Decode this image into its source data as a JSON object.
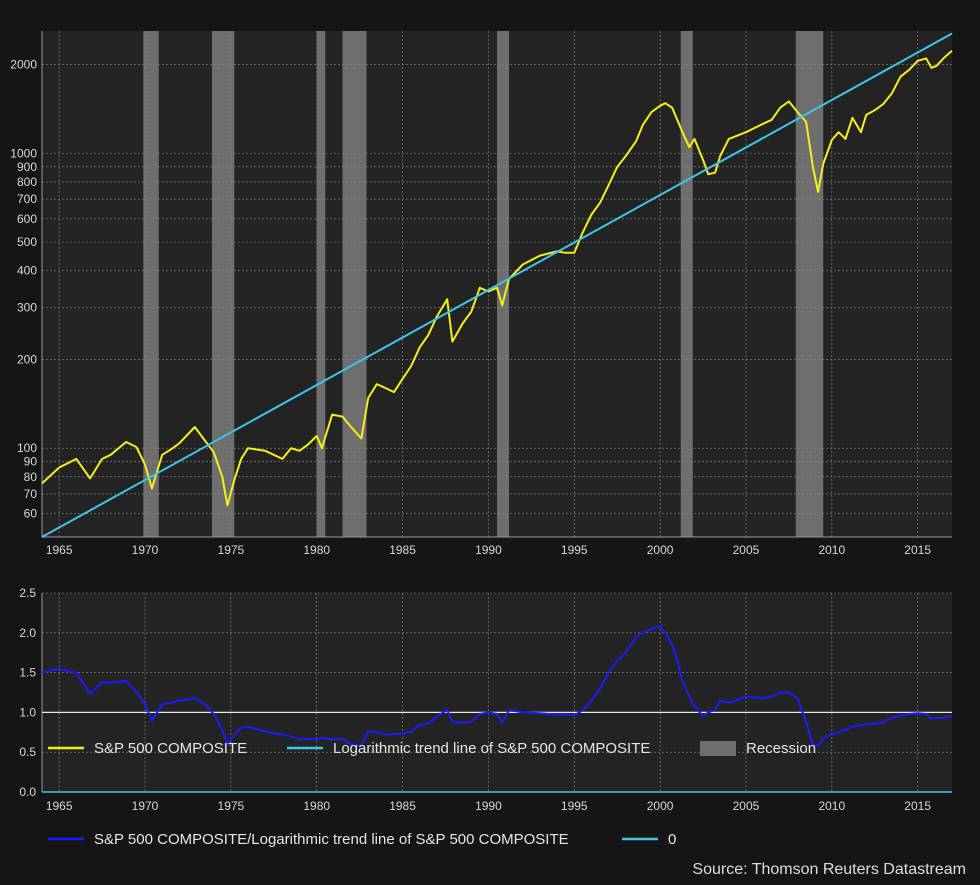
{
  "source": "Source: Thomson Reuters Datastream",
  "colors": {
    "background": "#151515",
    "plot_bg": "#232323",
    "sp500": "#f5ee1b",
    "trend": "#3ec5ee",
    "ratio": "#1a1aff",
    "zero": "#3ec5ee",
    "recession": "#6e6e6e"
  },
  "legend_top": [
    {
      "label": "S&P 500 COMPOSITE",
      "type": "line",
      "color": "#f5ee1b"
    },
    {
      "label": "Logarithmic trend line of S&P 500 COMPOSITE",
      "type": "line",
      "color": "#3ec5ee"
    },
    {
      "label": "Recession",
      "type": "box",
      "color": "#6e6e6e"
    }
  ],
  "legend_bottom": [
    {
      "label": "S&P 500 COMPOSITE/Logarithmic trend line of S&P 500 COMPOSITE",
      "type": "line",
      "color": "#1a1aff"
    },
    {
      "label": "0",
      "type": "line",
      "color": "#3ec5ee"
    }
  ],
  "chart_data": [
    {
      "type": "line",
      "y_scale": "log",
      "xlim": [
        1964.0,
        2017.0
      ],
      "ylim": [
        50,
        2600
      ],
      "x_ticks": [
        "1965",
        "1970",
        "1975",
        "1980",
        "1985",
        "1990",
        "1995",
        "2000",
        "2005",
        "2010",
        "2015"
      ],
      "y_ticks": [
        "60",
        "70",
        "80",
        "90",
        "100",
        "200",
        "300",
        "400",
        "500",
        "600",
        "700",
        "800",
        "900",
        "1000",
        "2000"
      ],
      "recessions": [
        [
          1969.9,
          1970.8
        ],
        [
          1973.9,
          1975.2
        ],
        [
          1980.0,
          1980.5
        ],
        [
          1981.5,
          1982.9
        ],
        [
          1990.5,
          1991.2
        ],
        [
          2001.2,
          2001.9
        ],
        [
          2007.9,
          2009.5
        ]
      ],
      "series": [
        {
          "name": "S&P 500 COMPOSITE",
          "x": [
            1964.0,
            1965.0,
            1965.5,
            1966.0,
            1966.8,
            1967.5,
            1968.0,
            1968.9,
            1969.5,
            1970.0,
            1970.4,
            1971.0,
            1971.5,
            1972.0,
            1972.9,
            1973.5,
            1974.0,
            1974.5,
            1974.8,
            1975.2,
            1975.6,
            1976.0,
            1977.0,
            1978.0,
            1978.5,
            1979.0,
            1979.5,
            1980.0,
            1980.3,
            1980.9,
            1981.5,
            1982.0,
            1982.6,
            1983.0,
            1983.5,
            1984.0,
            1984.5,
            1985.0,
            1985.5,
            1986.0,
            1986.5,
            1987.0,
            1987.6,
            1987.9,
            1988.5,
            1989.0,
            1989.5,
            1990.0,
            1990.5,
            1990.8,
            1991.2,
            1992.0,
            1993.0,
            1994.0,
            1994.5,
            1995.0,
            1995.5,
            1996.0,
            1996.5,
            1997.0,
            1997.5,
            1998.0,
            1998.6,
            1999.0,
            1999.5,
            2000.0,
            2000.3,
            2000.7,
            2001.0,
            2001.3,
            2001.7,
            2002.0,
            2002.5,
            2002.8,
            2003.2,
            2003.5,
            2004.0,
            2005.0,
            2006.0,
            2006.5,
            2007.0,
            2007.5,
            2008.0,
            2008.5,
            2008.9,
            2009.2,
            2009.5,
            2010.0,
            2010.4,
            2010.8,
            2011.2,
            2011.7,
            2012.0,
            2012.5,
            2013.0,
            2013.5,
            2014.0,
            2014.5,
            2015.0,
            2015.5,
            2015.8,
            2016.1,
            2016.5,
            2017.0
          ],
          "values": [
            76,
            86,
            89,
            92,
            79,
            92,
            95,
            105,
            101,
            88,
            73,
            95,
            99,
            104,
            118,
            106,
            97,
            80,
            64,
            78,
            92,
            100,
            98,
            92,
            100,
            98,
            103,
            110,
            100,
            130,
            128,
            118,
            108,
            148,
            165,
            160,
            155,
            172,
            190,
            220,
            242,
            280,
            320,
            230,
            265,
            290,
            350,
            340,
            350,
            305,
            375,
            420,
            450,
            465,
            460,
            460,
            540,
            620,
            680,
            780,
            900,
            980,
            1100,
            1250,
            1380,
            1450,
            1480,
            1430,
            1300,
            1180,
            1050,
            1120,
            950,
            850,
            860,
            980,
            1120,
            1180,
            1260,
            1300,
            1430,
            1500,
            1380,
            1280,
            900,
            740,
            920,
            1110,
            1180,
            1120,
            1320,
            1180,
            1350,
            1400,
            1470,
            1600,
            1820,
            1920,
            2060,
            2100,
            1950,
            1980,
            2100,
            2230
          ]
        },
        {
          "name": "Logarithmic trend line of S&P 500 COMPOSITE",
          "x": [
            1964.0,
            2017.0
          ],
          "values": [
            50,
            2550
          ]
        }
      ]
    },
    {
      "type": "line",
      "xlim": [
        1964.0,
        2017.0
      ],
      "ylim": [
        0,
        2.5
      ],
      "x_ticks": [
        "1965",
        "1970",
        "1975",
        "1980",
        "1985",
        "1990",
        "1995",
        "2000",
        "2005",
        "2010",
        "2015"
      ],
      "y_ticks": [
        "0.0",
        "0.5",
        "1.0",
        "1.5",
        "2.0",
        "2.5"
      ],
      "series": [
        {
          "name": "S&P 500 COMPOSITE/Logarithmic trend line of S&P 500 COMPOSITE",
          "x": [
            1964.0,
            1965.0,
            1965.5,
            1966.0,
            1966.8,
            1967.5,
            1968.0,
            1968.9,
            1969.5,
            1970.0,
            1970.4,
            1971.0,
            1971.5,
            1972.0,
            1972.9,
            1973.5,
            1974.0,
            1974.5,
            1974.8,
            1975.2,
            1975.6,
            1976.0,
            1977.0,
            1978.0,
            1978.5,
            1979.0,
            1979.5,
            1980.0,
            1980.3,
            1980.9,
            1981.5,
            1982.0,
            1982.6,
            1983.0,
            1983.5,
            1984.0,
            1984.5,
            1985.0,
            1985.5,
            1986.0,
            1986.5,
            1987.0,
            1987.6,
            1987.9,
            1988.5,
            1989.0,
            1989.5,
            1990.0,
            1990.5,
            1990.8,
            1991.2,
            1992.0,
            1993.0,
            1994.0,
            1994.5,
            1995.0,
            1995.5,
            1996.0,
            1996.5,
            1997.0,
            1997.5,
            1998.0,
            1998.6,
            1999.0,
            1999.5,
            2000.0,
            2000.3,
            2000.7,
            2001.0,
            2001.3,
            2001.7,
            2002.0,
            2002.5,
            2002.8,
            2003.2,
            2003.5,
            2004.0,
            2005.0,
            2006.0,
            2006.5,
            2007.0,
            2007.5,
            2008.0,
            2008.5,
            2008.9,
            2009.2,
            2009.5,
            2010.0,
            2010.4,
            2010.8,
            2011.2,
            2011.7,
            2012.0,
            2012.5,
            2013.0,
            2013.5,
            2014.0,
            2014.5,
            2015.0,
            2015.5,
            2015.8,
            2016.1,
            2016.5,
            2017.0
          ],
          "values": [
            1.5,
            1.55,
            1.52,
            1.5,
            1.23,
            1.38,
            1.37,
            1.4,
            1.26,
            1.1,
            0.9,
            1.1,
            1.12,
            1.15,
            1.18,
            1.1,
            0.98,
            0.78,
            0.6,
            0.72,
            0.81,
            0.82,
            0.76,
            0.72,
            0.7,
            0.66,
            0.67,
            0.66,
            0.68,
            0.66,
            0.67,
            0.6,
            0.58,
            0.76,
            0.75,
            0.72,
            0.73,
            0.73,
            0.76,
            0.84,
            0.86,
            0.95,
            1.03,
            0.88,
            0.87,
            0.88,
            0.98,
            1.0,
            0.98,
            0.87,
            1.03,
            1.0,
            0.99,
            0.97,
            0.98,
            0.96,
            1.03,
            1.15,
            1.3,
            1.5,
            1.65,
            1.75,
            1.95,
            2.0,
            2.05,
            2.08,
            2.0,
            1.85,
            1.65,
            1.4,
            1.2,
            1.08,
            0.95,
            1.0,
            1.03,
            1.15,
            1.12,
            1.2,
            1.18,
            1.2,
            1.25,
            1.25,
            1.18,
            0.88,
            0.6,
            0.58,
            0.68,
            0.72,
            0.75,
            0.78,
            0.82,
            0.84,
            0.85,
            0.86,
            0.88,
            0.93,
            0.96,
            0.98,
            0.99,
            0.98,
            0.92,
            0.93,
            0.93,
            0.96
          ]
        },
        {
          "name": "0",
          "x": [
            1964.0,
            2017.0
          ],
          "values": [
            1.0,
            1.0
          ]
        }
      ]
    }
  ]
}
